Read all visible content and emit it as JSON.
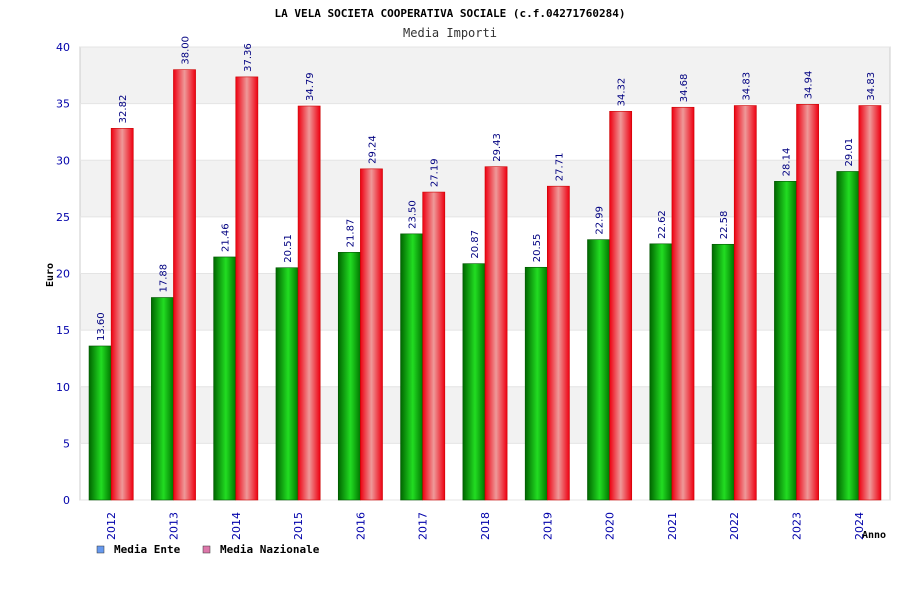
{
  "chart_data": {
    "type": "bar",
    "title": "LA VELA SOCIETA COOPERATIVA SOCIALE (c.f.04271760284)",
    "subtitle": "Media Importi",
    "xlabel": "Anno",
    "ylabel": "Euro",
    "ylim": [
      0,
      40
    ],
    "yticks": [
      "0",
      "5",
      "10",
      "15",
      "20",
      "25",
      "30",
      "35",
      "40"
    ],
    "grid": true,
    "legend_position": "bottom-left",
    "categories": [
      "2012",
      "2013",
      "2014",
      "2015",
      "2016",
      "2017",
      "2018",
      "2019",
      "2020",
      "2021",
      "2022",
      "2023",
      "2024"
    ],
    "series": [
      {
        "name": "Media Ente",
        "color": "#00aa00",
        "legend_color": "#6699ee",
        "values": [
          13.6,
          17.88,
          21.46,
          20.51,
          21.87,
          23.5,
          20.87,
          20.55,
          22.99,
          22.62,
          22.58,
          28.14,
          29.01
        ],
        "labels": [
          "13.60",
          "17.88",
          "21.46",
          "20.51",
          "21.87",
          "23.50",
          "20.87",
          "20.55",
          "22.99",
          "22.62",
          "22.58",
          "28.14",
          "29.01"
        ]
      },
      {
        "name": "Media Nazionale",
        "color": "#ee0011",
        "legend_color": "#dd77aa",
        "values": [
          32.82,
          38.0,
          37.36,
          34.79,
          29.24,
          27.19,
          29.43,
          27.71,
          34.32,
          34.68,
          34.83,
          34.94,
          34.83
        ],
        "labels": [
          "32.82",
          "38.00",
          "37.36",
          "34.79",
          "29.24",
          "27.19",
          "29.43",
          "27.71",
          "34.32",
          "34.68",
          "34.83",
          "34.94",
          "34.83"
        ]
      }
    ]
  }
}
